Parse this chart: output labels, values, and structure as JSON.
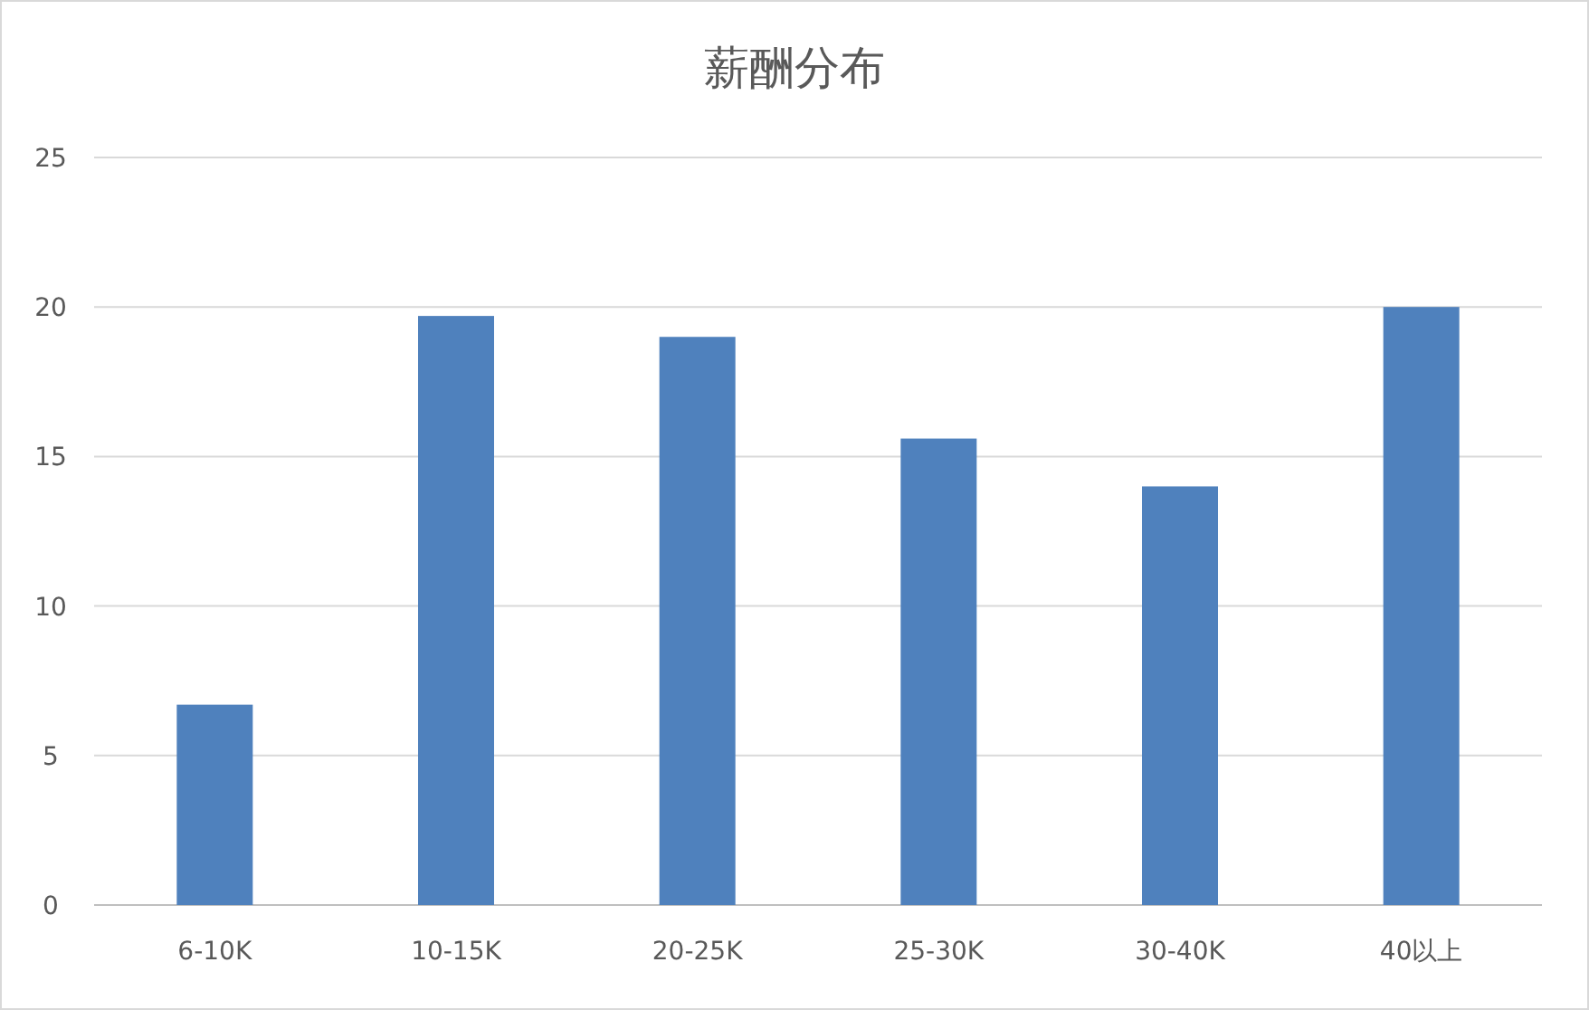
{
  "chart_data": {
    "type": "bar",
    "title": "薪酬分布",
    "categories": [
      "6-10K",
      "10-15K",
      "20-25K",
      "25-30K",
      "30-40K",
      "40以上"
    ],
    "values": [
      6.7,
      19.7,
      19.0,
      15.6,
      14.0,
      20.0
    ],
    "color": "#4f81bd",
    "ylim": [
      0,
      25
    ],
    "yticks": [
      0,
      5,
      10,
      15,
      20,
      25
    ],
    "grid": "y"
  }
}
